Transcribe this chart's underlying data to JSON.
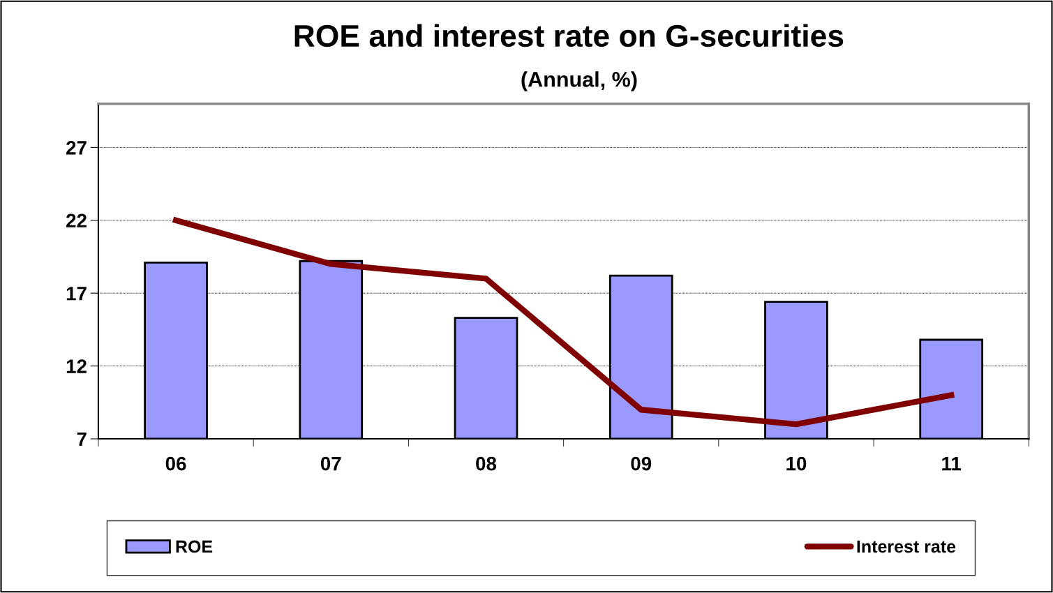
{
  "chart_data": {
    "type": "bar",
    "title": "ROE and interest rate on G-securities",
    "subtitle": "(Annual, %)",
    "categories": [
      "06",
      "07",
      "08",
      "09",
      "10",
      "11"
    ],
    "series": [
      {
        "name": "ROE",
        "color": "#9999ff",
        "values": [
          19.1,
          19.2,
          15.3,
          18.2,
          16.4,
          13.8
        ]
      },
      {
        "name": "Interest rate",
        "type": "line",
        "color": "#800000",
        "values": [
          22.0,
          19.0,
          18.0,
          9.0,
          8.0,
          10.0
        ]
      }
    ],
    "ylim": [
      7,
      30
    ],
    "yticks": [
      7,
      12,
      17,
      22,
      27
    ],
    "grid": "y",
    "legend": "bottom",
    "marker": "none",
    "line_style": "solid"
  }
}
